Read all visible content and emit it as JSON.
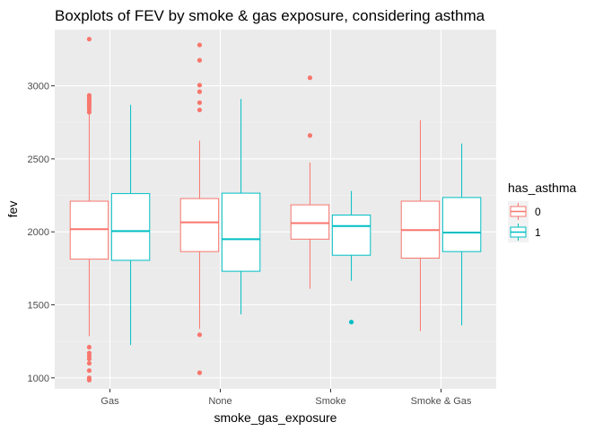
{
  "chart_data": {
    "type": "boxplot",
    "title": "Boxplots of FEV by smoke & gas exposure, considering asthma",
    "xlabel": "smoke_gas_exposure",
    "ylabel": "fev",
    "categories": [
      "Gas",
      "None",
      "Smoke",
      "Smoke & Gas"
    ],
    "yticks": [
      1000,
      1500,
      2000,
      2500,
      3000
    ],
    "ylim": [
      925,
      3385
    ],
    "grid": true,
    "legend": {
      "title": "has_asthma",
      "placement": "right",
      "entries": [
        {
          "label": "0",
          "color": "#F8766D"
        },
        {
          "label": "1",
          "color": "#00BFC4"
        }
      ]
    },
    "series": [
      {
        "name": "0",
        "color": "#F8766D",
        "boxes": [
          {
            "category": "Gas",
            "whisker_low": 1285,
            "q1": 1813,
            "median": 2018,
            "q3": 2210,
            "whisker_high": 2805,
            "outliers": [
              1210,
              1170,
              1150,
              1130,
              1100,
              1050,
              1000,
              985,
              2820,
              2840,
              2860,
              2875,
              2890,
              2905,
              2920,
              2935,
              3320
            ]
          },
          {
            "category": "None",
            "whisker_low": 1335,
            "q1": 1865,
            "median": 2065,
            "q3": 2228,
            "whisker_high": 2625,
            "outliers": [
              1295,
              1035,
              2835,
              2885,
              2960,
              3005,
              3175,
              3280
            ]
          },
          {
            "category": "Smoke",
            "whisker_low": 1610,
            "q1": 1950,
            "median": 2060,
            "q3": 2185,
            "whisker_high": 2475,
            "outliers": [
              2660,
              3055
            ]
          },
          {
            "category": "Smoke & Gas",
            "whisker_low": 1320,
            "q1": 1820,
            "median": 2012,
            "q3": 2210,
            "whisker_high": 2765,
            "outliers": []
          }
        ]
      },
      {
        "name": "1",
        "color": "#00BFC4",
        "boxes": [
          {
            "category": "Gas",
            "whisker_low": 1225,
            "q1": 1805,
            "median": 2005,
            "q3": 2262,
            "whisker_high": 2870,
            "outliers": []
          },
          {
            "category": "None",
            "whisker_low": 1435,
            "q1": 1730,
            "median": 1950,
            "q3": 2265,
            "whisker_high": 2910,
            "outliers": []
          },
          {
            "category": "Smoke",
            "whisker_low": 1665,
            "q1": 1840,
            "median": 2040,
            "q3": 2115,
            "whisker_high": 2280,
            "outliers": [
              1382
            ]
          },
          {
            "category": "Smoke & Gas",
            "whisker_low": 1360,
            "q1": 1865,
            "median": 1995,
            "q3": 2235,
            "whisker_high": 2605,
            "outliers": []
          }
        ]
      }
    ]
  }
}
